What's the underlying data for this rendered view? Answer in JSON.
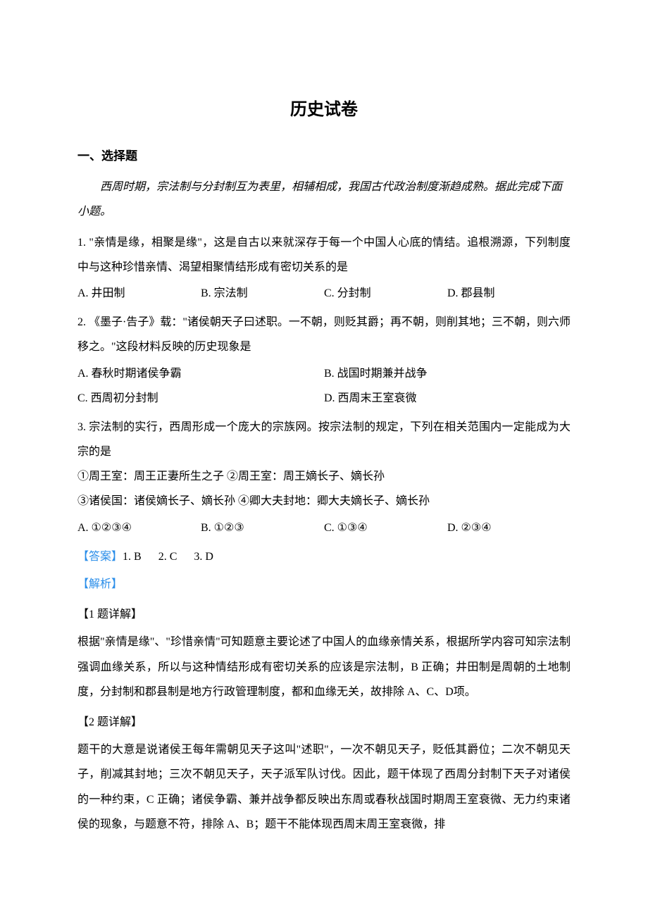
{
  "title": "历史试卷",
  "section1": {
    "heading": "一、选择题",
    "intro": "西周时期，宗法制与分封制互为表里，相辅相成，我国古代政治制度渐趋成熟。据此完成下面小题。"
  },
  "q1": {
    "text": "1. \"亲情是缘，相聚是缘\"，这是自古以来就深存于每一个中国人心底的情结。追根溯源，下列制度中与这种珍惜亲情、渴望相聚情结形成有密切关系的是",
    "optA": "A. 井田制",
    "optB": "B. 宗法制",
    "optC": "C. 分封制",
    "optD": "D. 郡县制"
  },
  "q2": {
    "text": "2. 《墨子·告子》载：\"诸侯朝天子曰述职。一不朝，则贬其爵；再不朝，则削其地；三不朝，则六师移之。\"这段材料反映的历史现象是",
    "optA": "A. 春秋时期诸侯争霸",
    "optB": "B. 战国时期兼并战争",
    "optC": "C. 西周初分封制",
    "optD": "D. 西周末王室衰微"
  },
  "q3": {
    "text": "3. 宗法制的实行，西周形成一个庞大的宗族网。按宗法制的规定，下列在相关范围内一定能成为大宗的是",
    "line1": "①周王室：周王正妻所生之子  ②周王室：周王嫡长子、嫡长孙",
    "line2": "③诸侯国：诸侯嫡长子、嫡长孙  ④卿大夫封地：卿大夫嫡长子、嫡长孙",
    "optA": "A. ①②③④",
    "optB": "B. ①②③",
    "optC": "C. ①③④",
    "optD": "D. ②③④"
  },
  "answer": {
    "label": "【答案】",
    "a1": "1. B",
    "a2": "2. C",
    "a3": "3. D"
  },
  "explain": {
    "label": "【解析】",
    "h1": "【1 题详解】",
    "p1": "根据\"亲情是缘\"、\"珍惜亲情\"可知题意主要论述了中国人的血缘亲情关系，根据所学内容可知宗法制强调血缘关系，所以与这种情结形成有密切关系的应该是宗法制，B 正确；井田制是周朝的土地制度，分封制和郡县制是地方行政管理制度，都和血缘无关，故排除 A、C、D项。",
    "h2": "【2 题详解】",
    "p2": "题干的大意是说诸侯王每年需朝见天子这叫\"述职\"，一次不朝见天子，贬低其爵位；二次不朝见天子，削减其封地；三次不朝见天子，天子派军队讨伐。因此，题干体现了西周分封制下天子对诸侯的一种约束，C 正确；诸侯争霸、兼并战争都反映出东周或春秋战国时期周王室衰微、无力约束诸侯的现象，与题意不符，排除 A、B；题干不能体现西周末周王室衰微，排"
  },
  "colors": {
    "link": "#298de9",
    "text": "#000000",
    "background": "#ffffff"
  }
}
